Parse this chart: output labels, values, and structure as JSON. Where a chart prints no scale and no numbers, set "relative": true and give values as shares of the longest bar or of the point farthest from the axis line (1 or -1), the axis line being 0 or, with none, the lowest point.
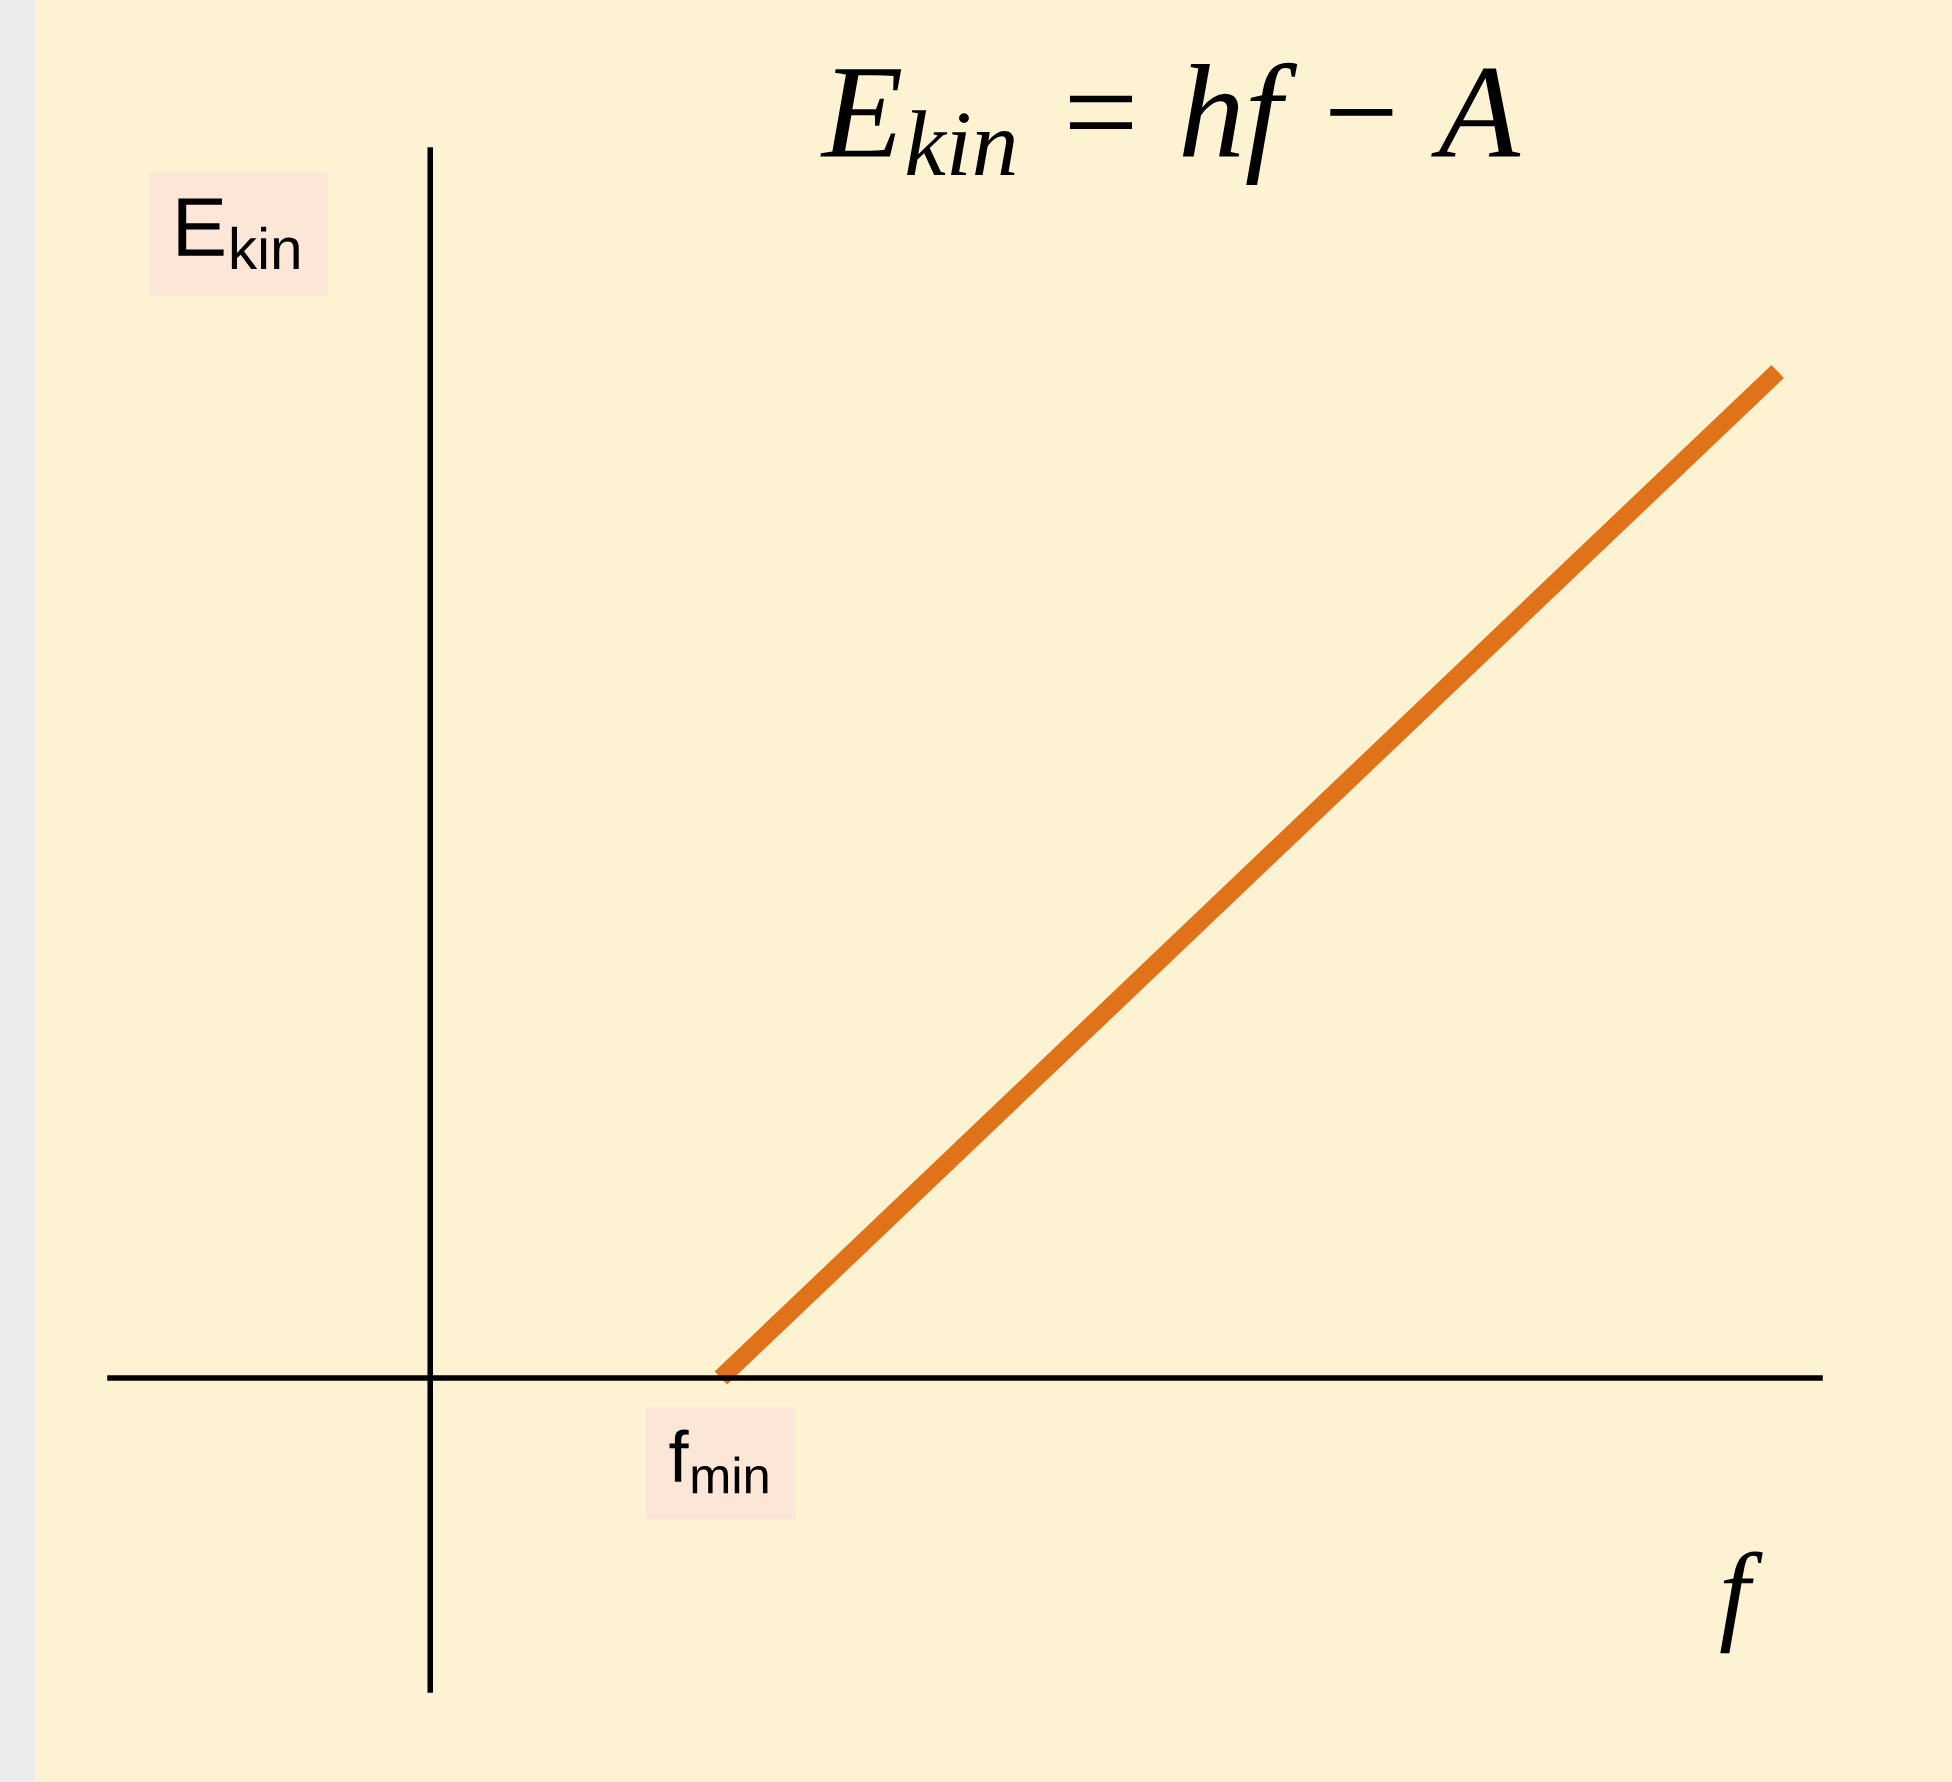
{
  "chart_data": {
    "type": "line",
    "title": "E$_{kin}$ = hf − A",
    "xlabel": "f",
    "ylabel": "E$_{kin}$",
    "relative": true,
    "categories": [
      null,
      null
    ],
    "annotations": [
      "f$_{min}$"
    ],
    "series": [
      {
        "color": "#e0731a",
        "values": [
          0,
          1
        ]
      }
    ],
    "marker": "none",
    "line_style": "solid",
    "grid": false,
    "legend": false
  }
}
